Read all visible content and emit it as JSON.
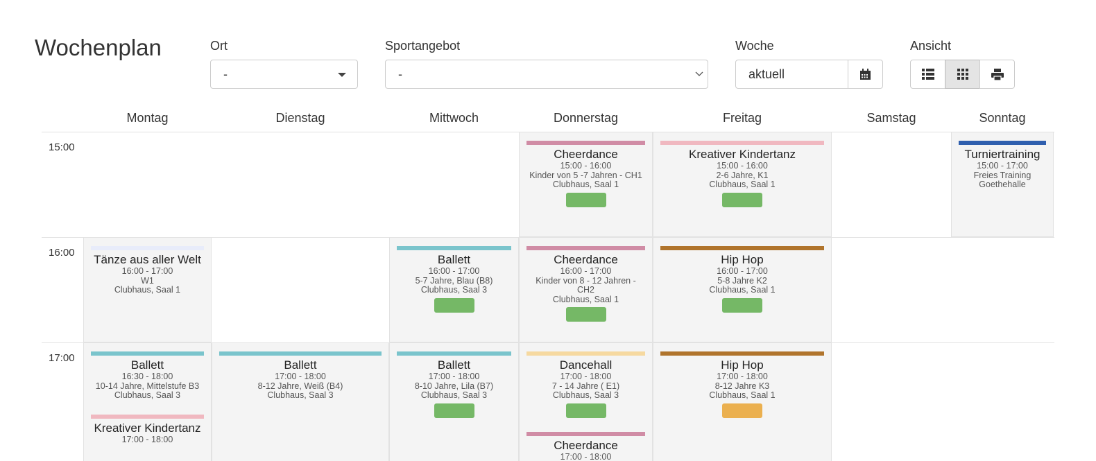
{
  "header": {
    "title": "Wochenplan",
    "filters": {
      "ort": {
        "label": "Ort",
        "value": "-"
      },
      "sportangebot": {
        "label": "Sportangebot",
        "value": "-"
      },
      "woche": {
        "label": "Woche",
        "value": "aktuell"
      },
      "ansicht": {
        "label": "Ansicht"
      }
    }
  },
  "schedule": {
    "days": [
      "Montag",
      "Dienstag",
      "Mittwoch",
      "Donnerstag",
      "Freitag",
      "Samstag",
      "Sonntag"
    ],
    "rows": [
      {
        "time": "15:00",
        "days": [
          [],
          [],
          [],
          [
            {
              "title": "Cheerdance",
              "color": "#d08ca5",
              "lines": [
                "15:00 - 16:00",
                "Kinder von 5 -7 Jahren - CH1",
                "Clubhaus, Saal 1"
              ],
              "button_color": "#75b866"
            }
          ],
          [
            {
              "title": "Kreativer Kindertanz",
              "color": "#f0b8c0",
              "lines": [
                "15:00 - 16:00",
                "2-6 Jahre, K1",
                "Clubhaus, Saal 1"
              ],
              "button_color": "#75b866"
            }
          ],
          [],
          [
            {
              "title": "Turniertraining",
              "color": "#2f5fae",
              "lines": [
                "15:00 - 17:00",
                "Freies Training",
                "Goethehalle"
              ]
            }
          ]
        ]
      },
      {
        "time": "16:00",
        "days": [
          [
            {
              "title": "Tänze aus aller Welt",
              "color": "#e8ecfa",
              "lines": [
                "16:00 - 17:00",
                "W1",
                "Clubhaus, Saal 1"
              ]
            }
          ],
          [],
          [
            {
              "title": "Ballett",
              "color": "#7ac4cc",
              "lines": [
                "16:00 - 17:00",
                "5-7 Jahre, Blau (B8)",
                "Clubhaus, Saal 3"
              ],
              "button_color": "#75b866"
            }
          ],
          [
            {
              "title": "Cheerdance",
              "color": "#d08ca5",
              "lines": [
                "16:00 - 17:00",
                "Kinder von 8 - 12 Jahren - CH2",
                "Clubhaus, Saal 1"
              ],
              "button_color": "#75b866"
            }
          ],
          [
            {
              "title": "Hip Hop",
              "color": "#b0742c",
              "lines": [
                "16:00 - 17:00",
                "5-8 Jahre K2",
                "Clubhaus, Saal 1"
              ],
              "button_color": "#75b866"
            }
          ],
          [],
          []
        ]
      },
      {
        "time": "17:00",
        "days": [
          [
            {
              "title": "Ballett",
              "color": "#7ac4cc",
              "lines": [
                "16:30 - 18:00",
                "10-14 Jahre, Mittelstufe B3",
                "Clubhaus, Saal 3"
              ]
            },
            {
              "title": "Kreativer Kindertanz",
              "color": "#f0b8c0",
              "lines": [
                "17:00 - 18:00"
              ]
            }
          ],
          [
            {
              "title": "Ballett",
              "color": "#7ac4cc",
              "lines": [
                "17:00 - 18:00",
                "8-12 Jahre, Weiß (B4)",
                "Clubhaus, Saal 3"
              ]
            }
          ],
          [
            {
              "title": "Ballett",
              "color": "#7ac4cc",
              "lines": [
                "17:00 - 18:00",
                "8-10 Jahre, Lila (B7)",
                "Clubhaus, Saal 3"
              ],
              "button_color": "#75b866"
            }
          ],
          [
            {
              "title": "Dancehall",
              "color": "#f6d9a0",
              "lines": [
                "17:00 - 18:00",
                "7 - 14 Jahre ( E1)",
                "Clubhaus, Saal 3"
              ],
              "button_color": "#75b866"
            },
            {
              "title": "Cheerdance",
              "color": "#d08ca5",
              "lines": [
                "17:00 - 18:00"
              ]
            }
          ],
          [
            {
              "title": "Hip Hop",
              "color": "#b0742c",
              "lines": [
                "17:00 - 18:00",
                "8-12 Jahre K3",
                "Clubhaus, Saal 1"
              ],
              "button_color": "#ebb04f"
            }
          ],
          [],
          []
        ]
      }
    ]
  }
}
